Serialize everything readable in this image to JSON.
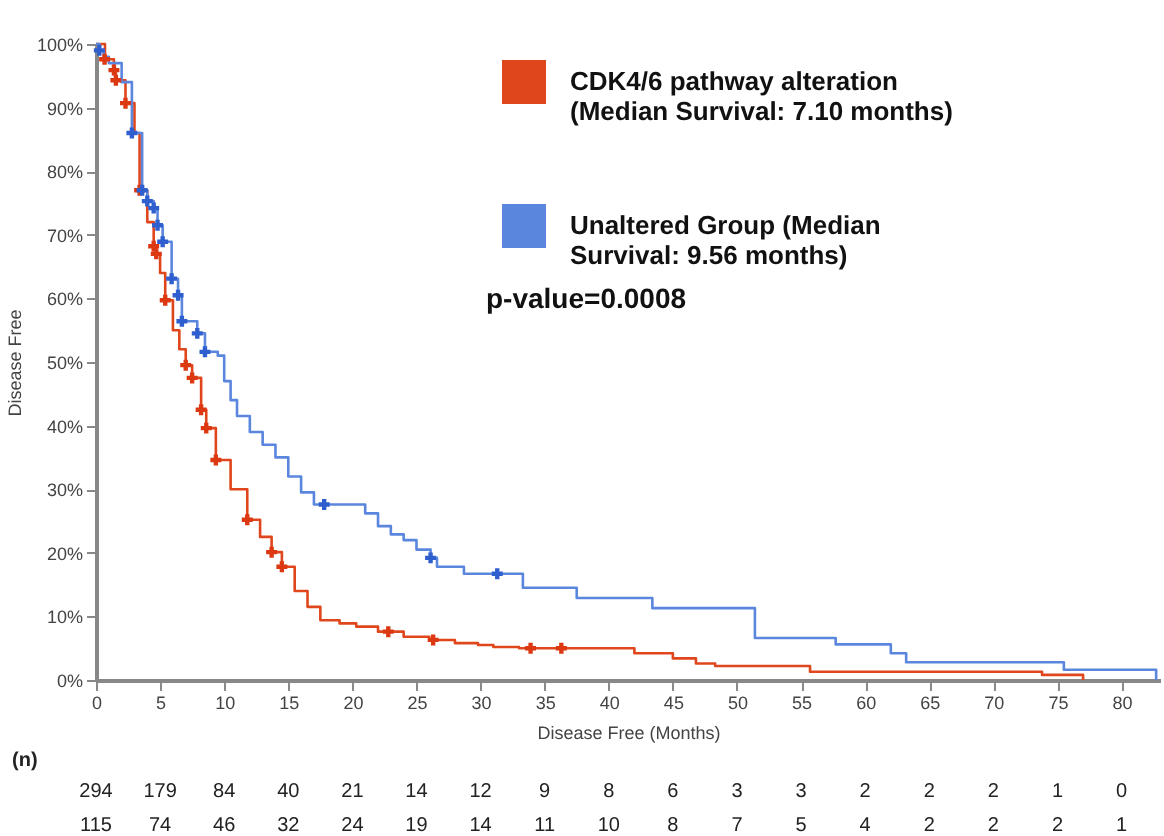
{
  "chart_data": {
    "type": "step",
    "xlabel": "Disease Free (Months)",
    "ylabel": "Disease Free",
    "xlim": [
      0,
      83
    ],
    "ylim": [
      0,
      100
    ],
    "xticks": [
      0,
      5,
      10,
      15,
      20,
      25,
      30,
      35,
      40,
      45,
      50,
      55,
      60,
      65,
      70,
      75,
      80
    ],
    "yticks": [
      {
        "value": 0,
        "label": "0%"
      },
      {
        "value": 10,
        "label": "10%"
      },
      {
        "value": 20,
        "label": "20%"
      },
      {
        "value": 30,
        "label": "30%"
      },
      {
        "value": 40,
        "label": "40%"
      },
      {
        "value": 50,
        "label": "50%"
      },
      {
        "value": 60,
        "label": "60%"
      },
      {
        "value": 70,
        "label": "70%"
      },
      {
        "value": 80,
        "label": "80%"
      },
      {
        "value": 90,
        "label": "90%"
      },
      {
        "value": 100,
        "label": "100%"
      }
    ],
    "grid": false,
    "legend": "top right",
    "line_style": "solid",
    "series": [
      {
        "name": "CDK4/6 pathway alteration (Median Survival: 7.10 months)",
        "color": "#e0461c",
        "x": [
          0,
          0.7,
          1.4,
          1.55,
          2.3,
          3.0,
          3.4,
          4.0,
          4.5,
          4.7,
          5.0,
          5.4,
          6.0,
          6.5,
          7.0,
          7.5,
          8.2,
          8.6,
          9.35,
          10.5,
          11.8,
          12.8,
          13.7,
          14.5,
          15.5,
          16.5,
          17.5,
          19.0,
          20.3,
          22.0,
          24.0,
          26.0,
          28.0,
          29.8,
          31.0,
          33.0,
          40.0,
          42.0,
          45.0,
          46.8,
          48.3,
          55.7,
          73.8,
          77.0
        ],
        "values": [
          100,
          97.6,
          95.9,
          94.3,
          90.7,
          86,
          77,
          72,
          68.2,
          67,
          64,
          59.7,
          55,
          52,
          49.5,
          47.5,
          42.5,
          39.6,
          34.6,
          30,
          25.2,
          22.5,
          20.1,
          17.8,
          14,
          11.5,
          9.4,
          8.9,
          8.4,
          7.6,
          6.8,
          6.3,
          5.8,
          5.5,
          5.2,
          5.0,
          5.0,
          4.2,
          3.4,
          2.6,
          2.2,
          1.3,
          0.8,
          0
        ]
      },
      {
        "name": "Unaltered Group (Median Survival: 9.56 months)",
        "color": "#5b86dd",
        "x": [
          0,
          0.26,
          0.6,
          1.0,
          2.0,
          2.8,
          3.6,
          4.0,
          4.5,
          4.8,
          5.2,
          5.9,
          6.4,
          6.7,
          7.9,
          8.5,
          9.5,
          10.0,
          10.5,
          11.0,
          12.0,
          13.0,
          14.0,
          15.0,
          16.0,
          17.0,
          20.0,
          21.0,
          22.0,
          23.0,
          24.0,
          25.0,
          26.1,
          26.6,
          28.7,
          33.3,
          37.5,
          43.4,
          51.4,
          57.7,
          62.0,
          63.2,
          75.5,
          82.7
        ],
        "values": [
          100,
          99,
          98,
          97,
          94,
          86,
          77,
          75.3,
          74.2,
          71.5,
          68.9,
          63.1,
          60.5,
          56.4,
          54.5,
          51.6,
          51,
          47,
          44,
          41.5,
          39,
          37,
          35,
          32,
          29.5,
          27.6,
          27.6,
          26.2,
          24.2,
          22.9,
          22,
          20.5,
          19.2,
          17.8,
          16.7,
          14.5,
          12.9,
          11.3,
          6.6,
          5.6,
          4.2,
          2.8,
          1.6,
          0
        ]
      },
      {
        "type": "scatter",
        "marker": "cross",
        "color": "#dc3912",
        "x": [
          0.67,
          1.4,
          1.55,
          2.3,
          3.4,
          4.5,
          4.7,
          5.4,
          7.0,
          7.5,
          8.2,
          8.6,
          9.35,
          11.8,
          13.7,
          14.5,
          22.8,
          26.3,
          33.9,
          36.3
        ],
        "values": [
          97.6,
          95.9,
          94.3,
          90.7,
          77,
          68.2,
          67,
          59.7,
          49.5,
          47.5,
          42.5,
          39.6,
          34.6,
          25.2,
          20.1,
          17.8,
          7.6,
          6.3,
          5.0,
          5.0
        ]
      },
      {
        "type": "scatter",
        "marker": "cross",
        "color": "#2f5fcf",
        "x": [
          0.26,
          2.8,
          3.6,
          4.0,
          4.5,
          4.8,
          5.2,
          5.9,
          6.4,
          6.7,
          7.9,
          8.5,
          17.8,
          26.1,
          31.3
        ],
        "values": [
          99,
          86,
          77,
          75.3,
          74.2,
          71.5,
          68.9,
          63.1,
          60.5,
          56.4,
          54.5,
          51.6,
          27.6,
          19.2,
          16.7
        ]
      }
    ],
    "annotations": [
      "p-value=0.0008",
      "(n)",
      "294 179 84 40 21 14 12 9 8 6 3 3 2 2 2 1 0",
      "115 74 46 32 24 19 14 11 10 8 7 5 4 2 2 2 1"
    ]
  }
}
